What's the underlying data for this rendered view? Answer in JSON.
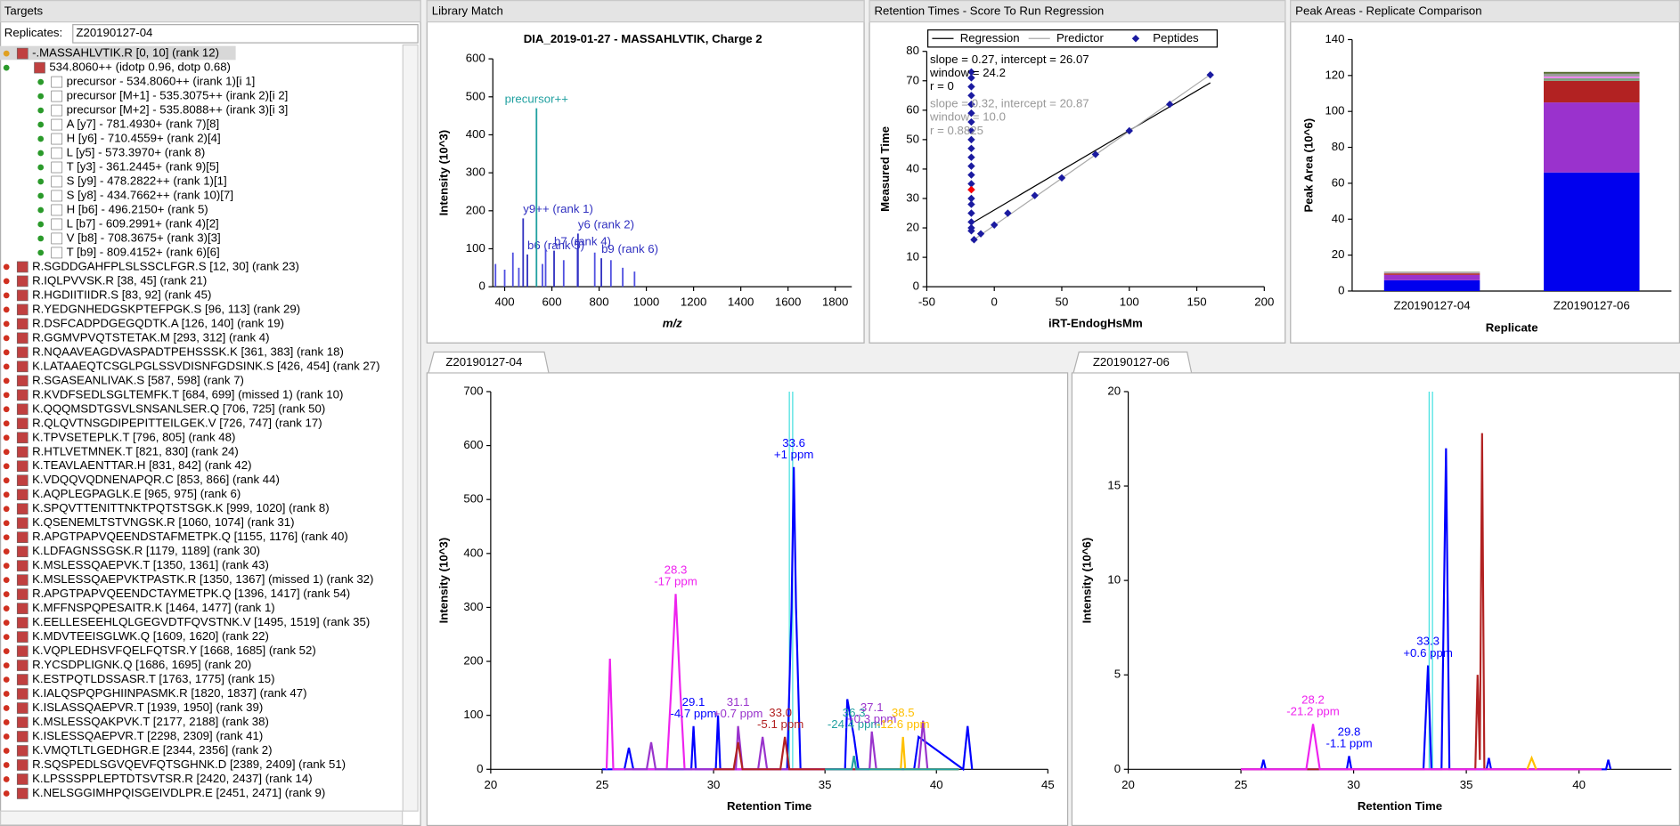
{
  "targets": {
    "panel_title": "Targets",
    "replicates_label": "Replicates:",
    "replicate": "Z20190127-04",
    "tree": {
      "peptide": "-.MASSAHLVTIK.R [0, 10] (rank 12)",
      "precursor": "534.8060++ (idotp 0.96, dotp 0.68)",
      "transitions": [
        "precursor - 534.8060++ (irank 1)[i 1]",
        "precursor [M+1] - 535.3075++ (irank 2)[i 2]",
        "precursor [M+2] - 535.8088++ (irank 3)[i 3]",
        "A [y7] - 781.4930+ (rank 7)[8]",
        "H [y6] - 710.4559+ (rank 2)[4]",
        "L [y5] - 573.3970+ (rank 8)",
        "T [y3] - 361.2445+ (rank 9)[5]",
        "S [y9] - 478.2822++ (rank 1)[1]",
        "S [y8] - 434.7662++ (rank 10)[7]",
        "H [b6] - 496.2150+ (rank 5)",
        "L [b7] - 609.2991+ (rank 4)[2]",
        "V [b8] - 708.3675+ (rank 3)[3]",
        "T [b9] - 809.4152+ (rank 6)[6]"
      ],
      "peptides": [
        "R.SGDDGAHFPLSLSSCLFGR.S [12, 30] (rank 23)",
        "R.IQLPVVSK.R [38, 45] (rank 21)",
        "R.HGDIITIIDR.S [83, 92] (rank 45)",
        "R.YEDGNHEDGSKPTEFPGK.S [96, 113] (rank 29)",
        "R.DSFCADPDGEGQDTK.A [126, 140] (rank 19)",
        "R.GGMVPVQTSTETAK.M [293, 312] (rank 4)",
        "R.NQAAVEAGDVASPADTPEHSSSK.K [361, 383] (rank 18)",
        "K.LATAAEQTCSGLPGLSSVDISNFGDSINK.S [426, 454] (rank 27)",
        "R.SGASEANLIVAK.S [587, 598] (rank 7)",
        "R.KVDFSEDLSGLTEMFK.T [684, 699] (missed 1) (rank 10)",
        "K.QQQMSDTGSVLSNSANLSER.Q [706, 725] (rank 50)",
        "R.QLQVTNSGDIPEPITTEILGEK.V [726, 747] (rank 17)",
        "K.TPVSETEPLK.T [796, 805] (rank 48)",
        "R.HTLVETMNEK.T [821, 830] (rank 24)",
        "K.TEAVLAENTTAR.H [831, 842] (rank 42)",
        "K.VDQQVQDNENAPQR.C [853, 866] (rank 44)",
        "K.AQPLEGPAGLK.E [965, 975] (rank 6)",
        "K.SPQVTTENITTNKTPQTSTSGK.K [999, 1020] (rank 8)",
        "K.QSENEMLTSTVNGSK.R [1060, 1074] (rank 31)",
        "R.APGTPAPVQEENDSTAFMETPK.Q [1155, 1176] (rank 40)",
        "K.LDFAGNSSGSK.R [1179, 1189] (rank 30)",
        "K.MSLESSQAEPVK.T [1350, 1361] (rank 43)",
        "K.MSLESSQAEPVKTPASTK.R [1350, 1367] (missed 1) (rank 32)",
        "R.APGTPAPVQEENDCTAYMETPK.Q [1396, 1417] (rank 54)",
        "K.MFFNSPQPESAITR.K [1464, 1477] (rank 1)",
        "K.EELLESEEHLQLGEGVDTFQVSTNK.V [1495, 1519] (rank 35)",
        "K.MDVTEEISGLWK.Q [1609, 1620] (rank 22)",
        "K.VQPLEDHSVFQELFQTSR.Y [1668, 1685] (rank 52)",
        "R.YCSDPLIGNK.Q [1686, 1695] (rank 20)",
        "K.ESTPQTLDSSASR.T [1763, 1775] (rank 15)",
        "K.IALQSPQPGHIINPASMK.R [1820, 1837] (rank 47)",
        "K.ISLASSQAEPVR.T [1939, 1950] (rank 39)",
        "K.MSLESSQAKPVK.T [2177, 2188] (rank 38)",
        "K.ISLESSQAEPVR.T [2298, 2309] (rank 41)",
        "K.VMQTLTLGEDHGR.E [2344, 2356] (rank 2)",
        "R.SQSPEDLSGVQEVFQTSGHNK.D [2389, 2409] (rank 51)",
        "K.LPSSSPPLEPTDTSVTSR.R [2420, 2437] (rank 14)",
        "K.NELSGGIMHPQISGEIVDLPR.E [2451, 2471] (rank 9)"
      ]
    }
  },
  "library_match": {
    "panel_title": "Library Match",
    "chart": {
      "type": "stick",
      "title": "DIA_2019-01-27 - MASSAHLVTIK, Charge 2",
      "x_label": "m/z",
      "y_label": "Intensity (10^3)",
      "x": [
        361.2,
        400,
        434.8,
        460,
        478.3,
        496.2,
        534.8,
        560,
        573.4,
        609.3,
        650,
        708.4,
        710.5,
        781.5,
        809.4,
        850,
        900,
        950
      ],
      "values": [
        60,
        45,
        90,
        50,
        180,
        85,
        470,
        60,
        100,
        95,
        70,
        100,
        140,
        90,
        75,
        70,
        50,
        40
      ],
      "labels": [
        null,
        null,
        null,
        null,
        "y9++ (rank 1)",
        "b6 (rank 5)",
        "precursor++",
        null,
        null,
        "b7 (rank 4)",
        null,
        null,
        "y6 (rank 2)",
        null,
        "b9 (rank 6)",
        null,
        null,
        null
      ],
      "colors": [
        "#5050e0",
        "#5050e0",
        "#5050e0",
        "#5050e0",
        "#3030c0",
        "#3030c0",
        "#20a0a0",
        "#5050e0",
        "#5050e0",
        "#3030c0",
        "#5050e0",
        "#5050e0",
        "#3030c0",
        "#5050e0",
        "#3030c0",
        "#5050e0",
        "#5050e0",
        "#5050e0"
      ],
      "xlim": [
        350,
        1870
      ],
      "xticks": [
        400,
        600,
        800,
        1000,
        1200,
        1400,
        1600,
        1800
      ],
      "ylim": [
        0,
        600
      ],
      "yticks": [
        0,
        100,
        200,
        300,
        400,
        500,
        600
      ]
    }
  },
  "retention_times": {
    "panel_title": "Retention Times - Score To Run Regression",
    "chart": {
      "type": "scatter",
      "x_label": "iRT-EndogHsMm",
      "y_label": "Measured Time",
      "xlim": [
        -50,
        200
      ],
      "xticks": [
        -50,
        0,
        50,
        100,
        150,
        200
      ],
      "ylim": [
        0,
        80
      ],
      "yticks": [
        0,
        10,
        20,
        30,
        40,
        50,
        60,
        70,
        80
      ],
      "lines": [
        {
          "name": "Regression",
          "color": "#000000",
          "x": [
            -17,
            160
          ],
          "values": [
            21.5,
            69.3
          ]
        },
        {
          "name": "Predictor",
          "color": "#aaaaaa",
          "x": [
            -17,
            160
          ],
          "values": [
            15.4,
            72.1
          ]
        }
      ],
      "series": [
        {
          "name": "Peptides",
          "color": "#1a1aa0",
          "x": [
            -17,
            -17,
            -17,
            -17,
            -17,
            -17,
            -17,
            -17,
            -17,
            -17,
            -17,
            -17,
            -17,
            -17,
            -17,
            -17,
            -17,
            -17,
            -17,
            -17,
            -17,
            -15,
            -10,
            0,
            10,
            30,
            50,
            75,
            100,
            130,
            160
          ],
          "values": [
            19,
            20,
            22,
            25,
            28,
            30,
            33,
            35,
            38,
            41,
            44,
            47,
            50,
            53,
            56,
            59,
            62,
            65,
            68,
            71,
            73,
            16,
            18,
            21,
            25,
            31,
            37,
            45,
            53,
            62,
            72
          ]
        },
        {
          "color": "#ff0000",
          "x": [
            -17
          ],
          "values": [
            33
          ]
        }
      ],
      "stats": [
        {
          "text": "slope = 0.27, intercept = 26.07",
          "color": "#000000"
        },
        {
          "text": "window = 24.2",
          "color": "#000000"
        },
        {
          "text": "r = 0",
          "color": "#000000"
        },
        {
          "text": "slope = 0.32, intercept = 20.87",
          "color": "#999999"
        },
        {
          "text": "window = 10.0",
          "color": "#999999"
        },
        {
          "text": "r = 0.8825",
          "color": "#999999"
        }
      ]
    }
  },
  "peak_areas": {
    "panel_title": "Peak Areas - Replicate Comparison",
    "chart": {
      "type": "stacked_bar",
      "x_label": "Replicate",
      "y_label": "Peak Area (10^6)",
      "categories": [
        "Z20190127-04",
        "Z20190127-06"
      ],
      "ylim": [
        0,
        140
      ],
      "yticks": [
        0,
        20,
        40,
        60,
        80,
        100,
        120,
        140
      ],
      "series": [
        {
          "color": "#0000ee",
          "values": [
            6,
            66
          ]
        },
        {
          "color": "#9a32cd",
          "values": [
            3,
            39
          ]
        },
        {
          "color": "#b22222",
          "values": [
            0.8,
            12
          ]
        },
        {
          "color": "#7f9f7f",
          "values": [
            0.3,
            1.5
          ]
        },
        {
          "color": "#ee82ee",
          "values": [
            0.2,
            1
          ]
        },
        {
          "color": "#999999",
          "values": [
            0.2,
            1.5
          ]
        },
        {
          "color": "#556b2f",
          "values": [
            0.2,
            1
          ]
        }
      ]
    }
  },
  "chromatogram_1": {
    "tab": "Z20190127-04",
    "chart": {
      "type": "line",
      "x_label": "Retention Time",
      "y_label": "Intensity (10^3)",
      "xlim": [
        20,
        45
      ],
      "xticks": [
        20,
        25,
        30,
        35,
        40,
        45
      ],
      "ylim": [
        0,
        700
      ],
      "yticks": [
        0,
        100,
        200,
        300,
        400,
        500,
        600,
        700
      ],
      "markers": [
        33.4,
        33.55
      ],
      "series": [
        {
          "color": "#0000ff",
          "x": [
            25,
            26,
            26.2,
            26.4,
            29.0,
            29.1,
            29.2,
            30.1,
            30.2,
            30.3,
            33.3,
            33.5,
            33.6,
            33.7,
            33.9,
            34.0,
            35.9,
            36.0,
            36.3,
            36.5,
            39.0,
            39.2,
            41.2,
            41.4,
            41.6
          ],
          "values": [
            0,
            0,
            40,
            0,
            0,
            80,
            0,
            0,
            100,
            0,
            0,
            300,
            560,
            300,
            0,
            0,
            0,
            130,
            60,
            0,
            0,
            60,
            0,
            80,
            0
          ]
        },
        {
          "color": "#ee22ee",
          "x": [
            25.2,
            25.35,
            25.5,
            27.9,
            28.1,
            28.3,
            28.5,
            28.7,
            41
          ],
          "values": [
            0,
            205,
            0,
            0,
            150,
            325,
            150,
            0,
            0
          ]
        },
        {
          "color": "#9933cc",
          "x": [
            26,
            27,
            27.2,
            27.4,
            31.0,
            31.1,
            31.3,
            32,
            32.2,
            32.4,
            37,
            37.1,
            37.3,
            39.2,
            39.4,
            39.6,
            41
          ],
          "values": [
            0,
            0,
            50,
            0,
            0,
            80,
            0,
            0,
            60,
            0,
            0,
            70,
            0,
            0,
            90,
            0,
            0
          ]
        },
        {
          "color": "#b22222",
          "x": [
            30,
            30.9,
            31.1,
            31.3,
            33.0,
            33.2,
            33.4,
            41
          ],
          "values": [
            0,
            0,
            50,
            0,
            0,
            60,
            0,
            0
          ]
        },
        {
          "color": "#ffc000",
          "x": [
            37,
            38.4,
            38.5,
            38.6,
            41
          ],
          "values": [
            0,
            0,
            60,
            0,
            0
          ]
        },
        {
          "color": "#20a0a0",
          "x": [
            35,
            36.2,
            36.3,
            36.4,
            41
          ],
          "values": [
            0,
            0,
            25,
            0,
            0
          ]
        }
      ],
      "annotations": [
        {
          "rt": 28.3,
          "ppm": "-17 ppm",
          "color": "#ee22ee"
        },
        {
          "rt": 29.1,
          "ppm": "-4.7 ppm",
          "color": "#0000ff"
        },
        {
          "rt": 31.1,
          "ppm": "+0.7 ppm",
          "color": "#9933cc"
        },
        {
          "rt": 33.6,
          "ppm": "+1 ppm",
          "color": "#0000ff"
        },
        {
          "rt": {
            "value": 33.0,
            "label": "33.0"
          },
          "ppm": "-5.1 ppm",
          "color": "#b22222"
        },
        {
          "rt": 36.3,
          "ppm": "-24.4 ppm",
          "color": "#20a0a0"
        },
        {
          "rt": 37.1,
          "ppm": "+0.3 ppm",
          "color": "#9933cc"
        },
        {
          "rt": 38.5,
          "ppm": "-12.6 ppm",
          "color": "#ffc000"
        }
      ]
    }
  },
  "chromatogram_2": {
    "tab": "Z20190127-06",
    "chart": {
      "type": "line",
      "x_label": "Retention Time",
      "y_label": "Intensity (10^6)",
      "xlim": [
        20,
        44.1
      ],
      "xticks": [
        20,
        25,
        30,
        35,
        40
      ],
      "ylim": [
        0,
        20
      ],
      "yticks": [
        0,
        5,
        10,
        15,
        20
      ],
      "markers": [
        33.35,
        33.5
      ],
      "series": [
        {
          "color": "#0000ff",
          "x": [
            25,
            25.9,
            26.0,
            26.1,
            29.7,
            29.8,
            29.9,
            33.1,
            33.3,
            33.45,
            33.9,
            34.1,
            34.25,
            35.9,
            36,
            36.1,
            41.2,
            41.3,
            41.4
          ],
          "values": [
            0,
            0,
            0.5,
            0,
            0,
            0.7,
            0,
            0,
            5.5,
            0,
            0,
            17,
            0,
            0,
            0.6,
            0,
            0,
            0.5,
            0
          ]
        },
        {
          "color": "#b22222",
          "x": [
            25,
            35.4,
            35.5,
            35.6,
            35.7,
            35.8,
            41
          ],
          "values": [
            0,
            0,
            5,
            0.5,
            17.8,
            0,
            0
          ]
        },
        {
          "color": "#ee22ee",
          "x": [
            25,
            27.9,
            28.2,
            28.5,
            41
          ],
          "values": [
            0,
            0,
            2.4,
            0,
            0
          ]
        },
        {
          "color": "#ffc000",
          "x": [
            37.7,
            37.9,
            38.1
          ],
          "values": [
            0,
            0.6,
            0
          ]
        }
      ],
      "annotations": [
        {
          "rt": 28.2,
          "ppm": "-21.2 ppm",
          "color": "#ee22ee"
        },
        {
          "rt": 29.8,
          "ppm": "-1.1 ppm",
          "color": "#0000ff"
        },
        {
          "rt": 33.3,
          "ppm": "+0.6 ppm",
          "color": "#0000ff"
        }
      ]
    }
  }
}
